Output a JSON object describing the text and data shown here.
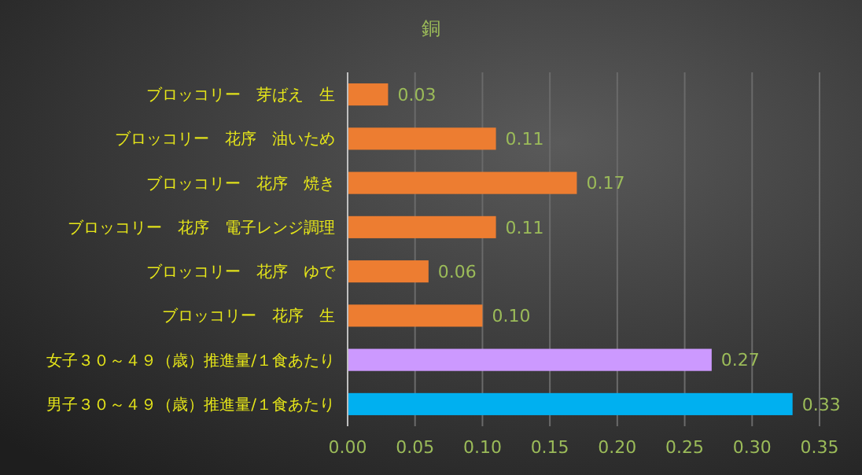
{
  "chart_data": {
    "type": "bar",
    "orientation": "horizontal",
    "title": "銅",
    "categories": [
      "ブロッコリー　芽ばえ　生",
      "ブロッコリー　花序　油いため",
      "ブロッコリー　花序　焼き",
      "ブロッコリー　花序　電子レンジ調理",
      "ブロッコリー　花序　ゆで",
      "ブロッコリー　花序　生",
      "女子３０～４９（歳）推進量/１食あたり",
      "男子３０～４９（歳）推進量/１食あたり"
    ],
    "values": [
      0.03,
      0.11,
      0.17,
      0.11,
      0.06,
      0.1,
      0.27,
      0.33
    ],
    "colors": [
      "#ed7d31",
      "#ed7d31",
      "#ed7d31",
      "#ed7d31",
      "#ed7d31",
      "#ed7d31",
      "#cc99ff",
      "#00b0f0"
    ],
    "xlim": [
      0,
      0.35
    ],
    "xticks": [
      {
        "value": 0,
        "label": "0.00"
      },
      {
        "value": 0.05,
        "label": "0.05"
      },
      {
        "value": 0.1,
        "label": "0.10"
      },
      {
        "value": 0.15,
        "label": "0.15"
      },
      {
        "value": 0.2,
        "label": "0.20"
      },
      {
        "value": 0.25,
        "label": "0.25"
      },
      {
        "value": 0.3,
        "label": "0.30"
      },
      {
        "value": 0.35,
        "label": "0.35"
      }
    ],
    "value_labels": [
      "0.03",
      "0.11",
      "0.17",
      "0.11",
      "0.06",
      "0.10",
      "0.27",
      "0.33"
    ],
    "grid": "x"
  }
}
